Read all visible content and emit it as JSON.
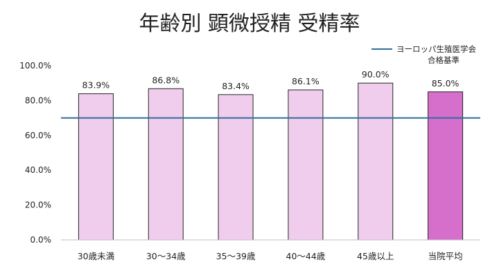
{
  "chart_data": {
    "type": "bar",
    "title": "年齢別 顕微授精 受精率",
    "categories": [
      "30歳未満",
      "30～34歳",
      "35～39歳",
      "40～44歳",
      "45歳以上",
      "当院平均"
    ],
    "values": [
      83.9,
      86.8,
      83.4,
      86.1,
      90.0,
      85.0
    ],
    "data_labels": [
      "83.9%",
      "86.8%",
      "83.4%",
      "86.1%",
      "90.0%",
      "85.0%"
    ],
    "ylim": [
      0,
      100
    ],
    "yticks": [
      0,
      20,
      40,
      60,
      80,
      100
    ],
    "ytick_labels": [
      "0.0%",
      "20.0%",
      "40.0%",
      "60.0%",
      "80.0%",
      "100.0%"
    ],
    "reference_line": {
      "value": 70,
      "label_lines": [
        "ヨーロッパ生殖医学会",
        "合格基準"
      ],
      "color": "#2e6e9e"
    },
    "bar_color": "#f0cdec",
    "highlight_bar_color": "#d56fcb",
    "highlight_index": 5,
    "bar_edge_color": "#222222",
    "legend_position": "top-right",
    "grid": false
  }
}
